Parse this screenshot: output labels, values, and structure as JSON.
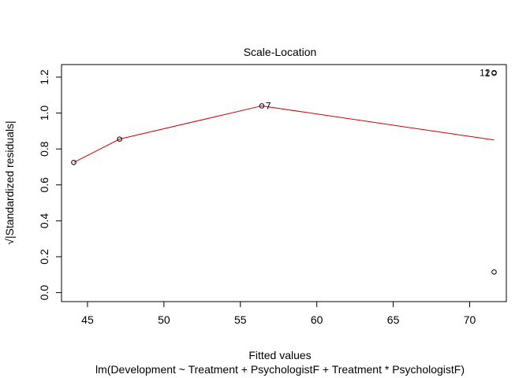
{
  "chart_data": {
    "type": "scatter",
    "title": "Scale-Location",
    "xlabel": "Fitted values",
    "ylabel": "√|Standardized residuals|",
    "subtitle": "lm(Development ~ Treatment + PsychologistF + Treatment * PsychologistF)",
    "xlim": [
      43.3,
      72.4
    ],
    "ylim": [
      -0.05,
      1.27
    ],
    "x_ticks": [
      45,
      50,
      55,
      60,
      65,
      70
    ],
    "y_ticks": [
      0.0,
      0.2,
      0.4,
      0.6,
      0.8,
      1.0,
      1.2
    ],
    "grid": false,
    "points": [
      {
        "x": 44.1,
        "y": 0.725,
        "label": ""
      },
      {
        "x": 47.1,
        "y": 0.855,
        "label": ""
      },
      {
        "x": 56.4,
        "y": 1.04,
        "label": "7"
      },
      {
        "x": 71.6,
        "y": 1.225,
        "label": "12"
      },
      {
        "x": 71.6,
        "y": 1.222,
        "label": "1"
      },
      {
        "x": 71.6,
        "y": 0.115,
        "label": ""
      }
    ],
    "smooth_line": {
      "color": "#cc0000",
      "x": [
        44.1,
        47.1,
        56.4,
        71.6
      ],
      "y": [
        0.725,
        0.855,
        1.04,
        0.85
      ]
    }
  }
}
